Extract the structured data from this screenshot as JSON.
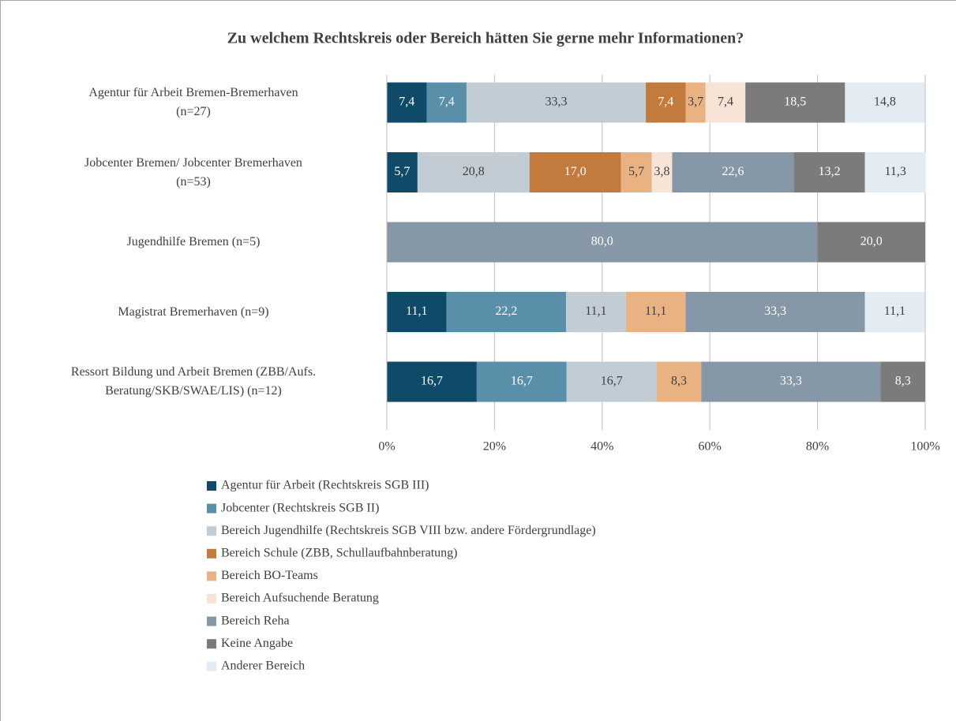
{
  "chart_data": {
    "type": "stacked_bar_horizontal",
    "title": "Zu welchem Rechtskreis oder Bereich hätten Sie gerne mehr Informationen?",
    "categories": [
      "Agentur für Arbeit Bremen-Bremerhaven\n(n=27)",
      "Jobcenter Bremen/ Jobcenter Bremerhaven\n(n=53)",
      "Jugendhilfe Bremen (n=5)",
      "Magistrat Bremerhaven (n=9)",
      "Ressort Bildung und Arbeit Bremen (ZBB/Aufs.\nBeratung/SKB/SWAE/LIS) (n=12)"
    ],
    "series": [
      {
        "name": "Agentur für Arbeit (Rechtskreis SGB III)",
        "color": "#0f4b68",
        "values": [
          7.4,
          5.7,
          0,
          11.1,
          16.7
        ],
        "value_labels": [
          "7,4",
          "5,7",
          null,
          "11,1",
          "16,7"
        ]
      },
      {
        "name": "Jobcenter (Rechtskreis SGB II)",
        "color": "#5a8faa",
        "values": [
          7.4,
          0,
          0,
          22.2,
          16.7
        ],
        "value_labels": [
          "7,4",
          null,
          null,
          "22,2",
          "16,7"
        ]
      },
      {
        "name": "Bereich Jugendhilfe (Rechtskreis SGB VIII bzw. andere Fördergrundlage)",
        "color": "#c1ccd4",
        "values": [
          33.3,
          20.8,
          0,
          11.1,
          16.7
        ],
        "value_labels": [
          "33,3",
          "20,8",
          null,
          "11,1",
          "16,7"
        ]
      },
      {
        "name": "Bereich Schule (ZBB, Schullaufbahnberatung)",
        "color": "#c27b3c",
        "values": [
          7.4,
          17.0,
          0,
          0,
          0
        ],
        "value_labels": [
          "7,4",
          "17,0",
          null,
          null,
          null
        ]
      },
      {
        "name": "Bereich BO-Teams",
        "color": "#e8b283",
        "values": [
          3.7,
          5.7,
          0,
          11.1,
          8.3
        ],
        "value_labels": [
          "3,7",
          "5,7",
          null,
          "11,1",
          "8,3"
        ]
      },
      {
        "name": "Bereich Aufsuchende Beratung",
        "color": "#f8e4d7",
        "values": [
          7.4,
          3.8,
          0,
          0,
          0
        ],
        "value_labels": [
          "7,4",
          "3,8",
          null,
          null,
          null
        ]
      },
      {
        "name": "Bereich Reha",
        "color": "#8698a7",
        "values": [
          0,
          22.6,
          80.0,
          33.3,
          33.3
        ],
        "value_labels": [
          null,
          "22,6",
          "80,0",
          "33,3",
          "33,3"
        ]
      },
      {
        "name": "Keine Angabe",
        "color": "#7b7b7b",
        "values": [
          18.5,
          13.2,
          20.0,
          0,
          8.3
        ],
        "value_labels": [
          "18,5",
          "13,2",
          "20,0",
          null,
          "8,3"
        ]
      },
      {
        "name": "Anderer Bereich",
        "color": "#e3ecf3",
        "values": [
          14.8,
          11.3,
          0,
          11.1,
          0
        ],
        "value_labels": [
          "14,8",
          "11,3",
          null,
          "11,1",
          null
        ]
      }
    ],
    "xlim": [
      0,
      100
    ],
    "xticks": [
      {
        "value": 0,
        "label": "0%"
      },
      {
        "value": 20,
        "label": "20%"
      },
      {
        "value": 40,
        "label": "40%"
      },
      {
        "value": 60,
        "label": "60%"
      },
      {
        "value": 80,
        "label": "80%"
      },
      {
        "value": 100,
        "label": "100%"
      }
    ],
    "grid": true,
    "legend": "bottom"
  }
}
